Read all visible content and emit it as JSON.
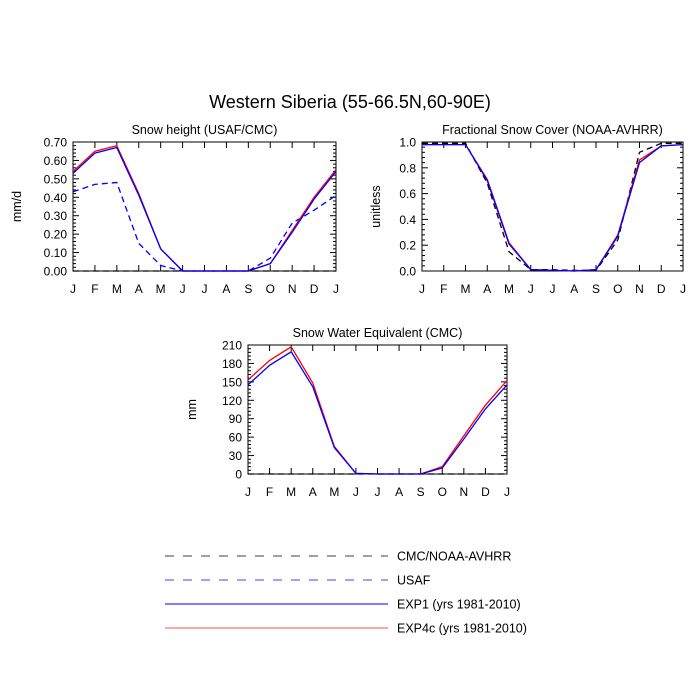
{
  "figure": {
    "title": "Western Siberia (55-66.5N,60-90E)"
  },
  "legend": [
    {
      "label": "CMC/NOAA-AVHRR",
      "color": "#000000",
      "dash": "dashed"
    },
    {
      "label": "USAF",
      "color": "#0000ff",
      "dash": "dashed"
    },
    {
      "label": "EXP1 (yrs 1981-2010)",
      "color": "#0000ff",
      "dash": "solid"
    },
    {
      "label": "EXP4c (yrs 1981-2010)",
      "color": "#ff0000",
      "dash": "solid"
    }
  ],
  "chart_data": [
    {
      "type": "line",
      "title": "Snow height (USAF/CMC)",
      "ylabel": "mm/d",
      "categories": [
        "J",
        "F",
        "M",
        "A",
        "M",
        "J",
        "J",
        "A",
        "S",
        "O",
        "N",
        "D",
        "J"
      ],
      "ylim": [
        0,
        0.7
      ],
      "yticks": [
        0,
        0.1,
        0.2,
        0.3,
        0.4,
        0.5,
        0.6,
        0.7
      ],
      "yticklabels": [
        "0.00",
        "0.10",
        "0.20",
        "0.30",
        "0.40",
        "0.50",
        "0.60",
        "0.70"
      ],
      "series": [
        {
          "name": "CMC/NOAA-AVHRR",
          "color": "#000000",
          "dash": "dashed",
          "values": [
            0,
            0,
            0,
            0,
            0,
            0,
            0,
            0,
            0,
            0,
            0,
            0,
            0
          ]
        },
        {
          "name": "USAF",
          "color": "#0000ff",
          "dash": "dashed",
          "values": [
            0.43,
            0.47,
            0.48,
            0.15,
            0.03,
            0,
            0,
            0,
            0,
            0.07,
            0.26,
            0.33,
            0.41
          ]
        },
        {
          "name": "EXP4c (yrs 1981-2010)",
          "color": "#ff0000",
          "dash": "solid",
          "values": [
            0.54,
            0.65,
            0.68,
            0.42,
            0.12,
            0,
            0,
            0,
            0,
            0.04,
            0.22,
            0.4,
            0.55
          ]
        },
        {
          "name": "EXP1 (yrs 1981-2010)",
          "color": "#0000ff",
          "dash": "solid",
          "values": [
            0.53,
            0.64,
            0.67,
            0.41,
            0.12,
            0,
            0,
            0,
            0,
            0.04,
            0.21,
            0.39,
            0.54
          ]
        }
      ]
    },
    {
      "type": "line",
      "title": "Fractional Snow Cover (NOAA-AVHRR)",
      "ylabel": "unitless",
      "categories": [
        "J",
        "F",
        "M",
        "A",
        "M",
        "J",
        "J",
        "A",
        "S",
        "O",
        "N",
        "D",
        "J"
      ],
      "ylim": [
        0,
        1.0
      ],
      "yticks": [
        0,
        0.2,
        0.4,
        0.6,
        0.8,
        1.0
      ],
      "yticklabels": [
        "0.0",
        "0.2",
        "0.4",
        "0.6",
        "0.8",
        "1.0"
      ],
      "series": [
        {
          "name": "CMC/NOAA-AVHRR",
          "color": "#000000",
          "dash": "dashed",
          "values": [
            0.99,
            0.99,
            0.99,
            0.68,
            0.15,
            0.01,
            0.01,
            0.005,
            0.005,
            0.24,
            0.92,
            0.99,
            0.99
          ]
        },
        {
          "name": "EXP4c (yrs 1981-2010)",
          "color": "#ff0000",
          "dash": "solid",
          "values": [
            0.98,
            0.98,
            0.98,
            0.71,
            0.22,
            0.01,
            0.005,
            0,
            0.01,
            0.28,
            0.86,
            0.97,
            0.98
          ]
        },
        {
          "name": "EXP1 (yrs 1981-2010)",
          "color": "#0000ff",
          "dash": "solid",
          "values": [
            0.98,
            0.98,
            0.98,
            0.7,
            0.21,
            0.01,
            0.005,
            0,
            0.01,
            0.27,
            0.84,
            0.97,
            0.98
          ]
        }
      ]
    },
    {
      "type": "line",
      "title": "Snow Water Equivalent (CMC)",
      "ylabel": "mm",
      "categories": [
        "J",
        "F",
        "M",
        "A",
        "M",
        "J",
        "J",
        "A",
        "S",
        "O",
        "N",
        "D",
        "J"
      ],
      "ylim": [
        0,
        210
      ],
      "yticks": [
        0,
        30,
        60,
        90,
        120,
        150,
        180,
        210
      ],
      "yticklabels": [
        "0",
        "30",
        "60",
        "90",
        "120",
        "150",
        "180",
        "210"
      ],
      "series": [
        {
          "name": "CMC/NOAA-AVHRR",
          "color": "#000000",
          "dash": "dashed",
          "values": [
            0,
            0,
            0,
            0,
            0,
            0,
            0,
            0,
            0,
            0,
            0,
            0,
            0
          ]
        },
        {
          "name": "EXP4c (yrs 1981-2010)",
          "color": "#ff0000",
          "dash": "solid",
          "values": [
            153,
            185,
            207,
            148,
            45,
            1,
            0,
            0,
            0,
            12,
            62,
            112,
            152
          ]
        },
        {
          "name": "EXP1 (yrs 1981-2010)",
          "color": "#0000ff",
          "dash": "solid",
          "values": [
            145,
            177,
            199,
            142,
            43,
            1,
            0,
            0,
            0,
            10,
            57,
            106,
            145
          ]
        }
      ]
    }
  ]
}
